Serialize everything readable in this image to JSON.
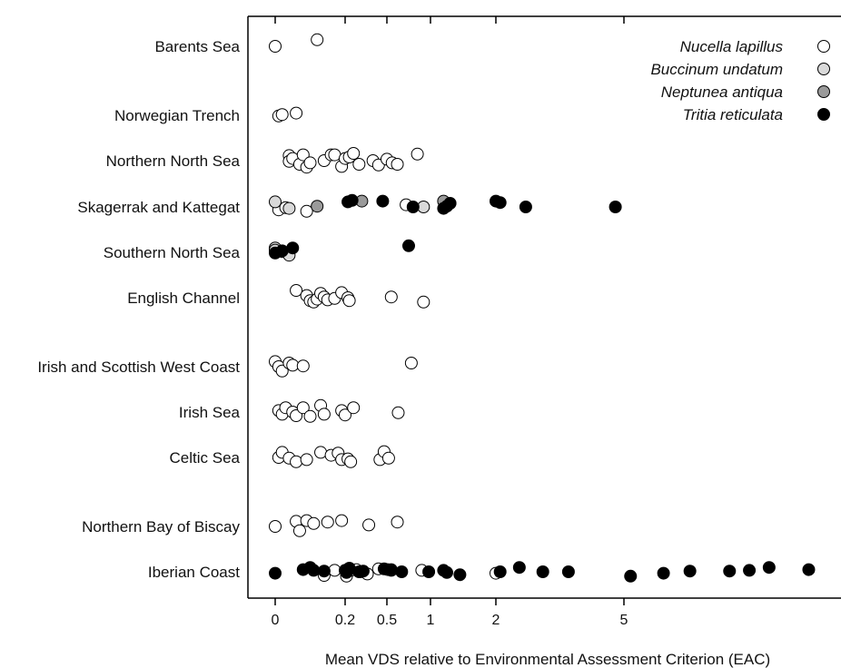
{
  "chart_data": {
    "type": "scatter",
    "xlabel": "Mean VDS relative to Environmental Assessment Criterion (EAC)",
    "x_tick_labels": [
      "0",
      "0.2",
      "0.5",
      "1",
      "2",
      "5"
    ],
    "x_ticks": [
      0,
      0.2,
      0.5,
      1,
      2,
      5
    ],
    "xlim": [
      -0.1,
      20
    ],
    "xscale": "compressed (non-linear)",
    "grid": false,
    "legend_position": "top-right",
    "categories": [
      "Barents Sea",
      "Norwegian Trench",
      "Northern North Sea",
      "Skagerrak and Kattegat",
      "Southern North Sea",
      "English Channel",
      "Irish and Scottish West Coast",
      "Irish Sea",
      "Celtic Sea",
      "Northern Bay of Biscay",
      "Iberian Coast"
    ],
    "series": [
      {
        "name": "Nucella lapillus",
        "fill": "#ffffff",
        "points": [
          {
            "region": "Barents Sea",
            "x": 0.0,
            "j": 0.0
          },
          {
            "region": "Barents Sea",
            "x": 0.12,
            "j": -0.9
          },
          {
            "region": "Norwegian Trench",
            "x": 0.01,
            "j": 0.1
          },
          {
            "region": "Norwegian Trench",
            "x": 0.02,
            "j": -0.1
          },
          {
            "region": "Norwegian Trench",
            "x": 0.06,
            "j": -0.3
          },
          {
            "region": "Northern North Sea",
            "x": 0.04,
            "j": -0.7
          },
          {
            "region": "Northern North Sea",
            "x": 0.04,
            "j": 0.1
          },
          {
            "region": "Northern North Sea",
            "x": 0.05,
            "j": -0.3
          },
          {
            "region": "Northern North Sea",
            "x": 0.07,
            "j": 0.5
          },
          {
            "region": "Northern North Sea",
            "x": 0.08,
            "j": -0.8
          },
          {
            "region": "Northern North Sea",
            "x": 0.09,
            "j": 0.9
          },
          {
            "region": "Northern North Sea",
            "x": 0.1,
            "j": 0.3
          },
          {
            "region": "Northern North Sea",
            "x": 0.14,
            "j": 0.0
          },
          {
            "region": "Northern North Sea",
            "x": 0.16,
            "j": -0.8
          },
          {
            "region": "Northern North Sea",
            "x": 0.17,
            "j": -0.8
          },
          {
            "region": "Northern North Sea",
            "x": 0.19,
            "j": 0.8
          },
          {
            "region": "Northern North Sea",
            "x": 0.2,
            "j": -0.3
          },
          {
            "region": "Northern North Sea",
            "x": 0.23,
            "j": -0.5
          },
          {
            "region": "Northern North Sea",
            "x": 0.26,
            "j": -1.0
          },
          {
            "region": "Northern North Sea",
            "x": 0.3,
            "j": 0.5
          },
          {
            "region": "Northern North Sea",
            "x": 0.4,
            "j": 0.0
          },
          {
            "region": "Northern North Sea",
            "x": 0.44,
            "j": 0.6
          },
          {
            "region": "Northern North Sea",
            "x": 0.5,
            "j": -0.2
          },
          {
            "region": "Northern North Sea",
            "x": 0.56,
            "j": 0.3
          },
          {
            "region": "Northern North Sea",
            "x": 0.62,
            "j": 0.5
          },
          {
            "region": "Northern North Sea",
            "x": 0.85,
            "j": -0.9
          },
          {
            "region": "Skagerrak and Kattegat",
            "x": 0.01,
            "j": 0.4
          },
          {
            "region": "Skagerrak and Kattegat",
            "x": 0.03,
            "j": 0.1
          },
          {
            "region": "Skagerrak and Kattegat",
            "x": 0.09,
            "j": 0.6
          },
          {
            "region": "Skagerrak and Kattegat",
            "x": 0.72,
            "j": -0.3
          },
          {
            "region": "English Channel",
            "x": 0.06,
            "j": -1.0
          },
          {
            "region": "English Channel",
            "x": 0.09,
            "j": -0.3
          },
          {
            "region": "English Channel",
            "x": 0.1,
            "j": 0.4
          },
          {
            "region": "English Channel",
            "x": 0.11,
            "j": 0.6
          },
          {
            "region": "English Channel",
            "x": 0.12,
            "j": 0.2
          },
          {
            "region": "English Channel",
            "x": 0.13,
            "j": -0.6
          },
          {
            "region": "English Channel",
            "x": 0.14,
            "j": -0.1
          },
          {
            "region": "English Channel",
            "x": 0.15,
            "j": 0.3
          },
          {
            "region": "English Channel",
            "x": 0.17,
            "j": 0.1
          },
          {
            "region": "English Channel",
            "x": 0.19,
            "j": -0.7
          },
          {
            "region": "English Channel",
            "x": 0.22,
            "j": 0.0
          },
          {
            "region": "English Channel",
            "x": 0.23,
            "j": 0.4
          },
          {
            "region": "English Channel",
            "x": 0.55,
            "j": -0.1
          },
          {
            "region": "English Channel",
            "x": 0.92,
            "j": 0.6
          },
          {
            "region": "Irish and Scottish West Coast",
            "x": 0.0,
            "j": -0.7
          },
          {
            "region": "Irish and Scottish West Coast",
            "x": 0.01,
            "j": 0.0
          },
          {
            "region": "Irish and Scottish West Coast",
            "x": 0.02,
            "j": 0.6
          },
          {
            "region": "Irish and Scottish West Coast",
            "x": 0.04,
            "j": -0.5
          },
          {
            "region": "Irish and Scottish West Coast",
            "x": 0.05,
            "j": -0.2
          },
          {
            "region": "Irish and Scottish West Coast",
            "x": 0.08,
            "j": -0.1
          },
          {
            "region": "Irish and Scottish West Coast",
            "x": 0.78,
            "j": -0.5
          },
          {
            "region": "Irish Sea",
            "x": 0.01,
            "j": -0.2
          },
          {
            "region": "Irish Sea",
            "x": 0.02,
            "j": 0.3
          },
          {
            "region": "Irish Sea",
            "x": 0.03,
            "j": -0.6
          },
          {
            "region": "Irish Sea",
            "x": 0.05,
            "j": 0.0
          },
          {
            "region": "Irish Sea",
            "x": 0.06,
            "j": 0.5
          },
          {
            "region": "Irish Sea",
            "x": 0.08,
            "j": -0.6
          },
          {
            "region": "Irish Sea",
            "x": 0.1,
            "j": 0.6
          },
          {
            "region": "Irish Sea",
            "x": 0.13,
            "j": -0.9
          },
          {
            "region": "Irish Sea",
            "x": 0.14,
            "j": 0.3
          },
          {
            "region": "Irish Sea",
            "x": 0.19,
            "j": -0.2
          },
          {
            "region": "Irish Sea",
            "x": 0.2,
            "j": 0.4
          },
          {
            "region": "Irish Sea",
            "x": 0.26,
            "j": -0.6
          },
          {
            "region": "Irish Sea",
            "x": 0.63,
            "j": 0.1
          },
          {
            "region": "Celtic Sea",
            "x": 0.01,
            "j": 0.0
          },
          {
            "region": "Celtic Sea",
            "x": 0.02,
            "j": -0.7
          },
          {
            "region": "Celtic Sea",
            "x": 0.04,
            "j": 0.1
          },
          {
            "region": "Celtic Sea",
            "x": 0.06,
            "j": 0.6
          },
          {
            "region": "Celtic Sea",
            "x": 0.09,
            "j": 0.3
          },
          {
            "region": "Celtic Sea",
            "x": 0.13,
            "j": -0.7
          },
          {
            "region": "Celtic Sea",
            "x": 0.16,
            "j": -0.3
          },
          {
            "region": "Celtic Sea",
            "x": 0.18,
            "j": -0.6
          },
          {
            "region": "Celtic Sea",
            "x": 0.19,
            "j": 0.3
          },
          {
            "region": "Celtic Sea",
            "x": 0.22,
            "j": 0.2
          },
          {
            "region": "Celtic Sea",
            "x": 0.24,
            "j": 0.6
          },
          {
            "region": "Celtic Sea",
            "x": 0.45,
            "j": 0.3
          },
          {
            "region": "Celtic Sea",
            "x": 0.48,
            "j": -0.8
          },
          {
            "region": "Celtic Sea",
            "x": 0.52,
            "j": 0.1
          },
          {
            "region": "Northern Bay of Biscay",
            "x": 0.0,
            "j": 0.0
          },
          {
            "region": "Northern Bay of Biscay",
            "x": 0.06,
            "j": -0.7
          },
          {
            "region": "Northern Bay of Biscay",
            "x": 0.07,
            "j": 0.6
          },
          {
            "region": "Northern Bay of Biscay",
            "x": 0.09,
            "j": -0.8
          },
          {
            "region": "Northern Bay of Biscay",
            "x": 0.11,
            "j": -0.4
          },
          {
            "region": "Northern Bay of Biscay",
            "x": 0.15,
            "j": -0.6
          },
          {
            "region": "Northern Bay of Biscay",
            "x": 0.19,
            "j": -0.8
          },
          {
            "region": "Northern Bay of Biscay",
            "x": 0.37,
            "j": -0.2
          },
          {
            "region": "Northern Bay of Biscay",
            "x": 0.62,
            "j": -0.6
          },
          {
            "region": "Iberian Coast",
            "x": 0.14,
            "j": 0.5
          },
          {
            "region": "Iberian Coast",
            "x": 0.17,
            "j": -0.2
          },
          {
            "region": "Iberian Coast",
            "x": 0.21,
            "j": 0.6
          },
          {
            "region": "Iberian Coast",
            "x": 0.24,
            "j": -0.2
          },
          {
            "region": "Iberian Coast",
            "x": 0.28,
            "j": -0.3
          },
          {
            "region": "Iberian Coast",
            "x": 0.31,
            "j": 0.0
          },
          {
            "region": "Iberian Coast",
            "x": 0.36,
            "j": 0.3
          },
          {
            "region": "Iberian Coast",
            "x": 0.44,
            "j": -0.4
          },
          {
            "region": "Iberian Coast",
            "x": 0.51,
            "j": -0.3
          },
          {
            "region": "Iberian Coast",
            "x": 0.55,
            "j": -0.3
          },
          {
            "region": "Iberian Coast",
            "x": 0.9,
            "j": -0.2
          },
          {
            "region": "Iberian Coast",
            "x": 2.0,
            "j": 0.2
          }
        ]
      },
      {
        "name": "Buccinum undatum",
        "fill": "#d9d9d9",
        "points": [
          {
            "region": "Skagerrak and Kattegat",
            "x": 0.0,
            "j": -0.7
          },
          {
            "region": "Skagerrak and Kattegat",
            "x": 0.04,
            "j": 0.2
          },
          {
            "region": "Skagerrak and Kattegat",
            "x": 0.92,
            "j": 0.0
          },
          {
            "region": "Southern North Sea",
            "x": 0.0,
            "j": -0.6
          },
          {
            "region": "Southern North Sea",
            "x": 0.0,
            "j": -0.3
          },
          {
            "region": "Southern North Sea",
            "x": 0.02,
            "j": -0.1
          },
          {
            "region": "Southern North Sea",
            "x": 0.04,
            "j": 0.4
          }
        ]
      },
      {
        "name": "Neptunea antiqua",
        "fill": "#9a9a9a",
        "points": [
          {
            "region": "Skagerrak and Kattegat",
            "x": 0.12,
            "j": -0.1
          },
          {
            "region": "Skagerrak and Kattegat",
            "x": 0.32,
            "j": -0.8
          },
          {
            "region": "Skagerrak and Kattegat",
            "x": 1.2,
            "j": -0.8
          }
        ]
      },
      {
        "name": "Tritia reticulata",
        "fill": "#000000",
        "points": [
          {
            "region": "Skagerrak and Kattegat",
            "x": 0.22,
            "j": -0.7
          },
          {
            "region": "Skagerrak and Kattegat",
            "x": 0.25,
            "j": -0.9
          },
          {
            "region": "Skagerrak and Kattegat",
            "x": 0.47,
            "j": -0.8
          },
          {
            "region": "Skagerrak and Kattegat",
            "x": 0.8,
            "j": 0.0
          },
          {
            "region": "Skagerrak and Kattegat",
            "x": 1.2,
            "j": 0.2
          },
          {
            "region": "Skagerrak and Kattegat",
            "x": 1.25,
            "j": -0.1
          },
          {
            "region": "Skagerrak and Kattegat",
            "x": 1.3,
            "j": -0.5
          },
          {
            "region": "Skagerrak and Kattegat",
            "x": 2.0,
            "j": -0.8
          },
          {
            "region": "Skagerrak and Kattegat",
            "x": 2.1,
            "j": -0.6
          },
          {
            "region": "Skagerrak and Kattegat",
            "x": 2.7,
            "j": 0.0
          },
          {
            "region": "Skagerrak and Kattegat",
            "x": 4.8,
            "j": 0.0
          },
          {
            "region": "Southern North Sea",
            "x": 0.0,
            "j": 0.1
          },
          {
            "region": "Southern North Sea",
            "x": 0.02,
            "j": -0.2
          },
          {
            "region": "Southern North Sea",
            "x": 0.05,
            "j": -0.6
          },
          {
            "region": "Southern North Sea",
            "x": 0.75,
            "j": -0.9
          },
          {
            "region": "Iberian Coast",
            "x": 0.0,
            "j": 0.2
          },
          {
            "region": "Iberian Coast",
            "x": 0.08,
            "j": -0.3
          },
          {
            "region": "Iberian Coast",
            "x": 0.1,
            "j": -0.6
          },
          {
            "region": "Iberian Coast",
            "x": 0.11,
            "j": -0.2
          },
          {
            "region": "Iberian Coast",
            "x": 0.14,
            "j": -0.1
          },
          {
            "region": "Iberian Coast",
            "x": 0.2,
            "j": -0.2
          },
          {
            "region": "Iberian Coast",
            "x": 0.21,
            "j": 0.1
          },
          {
            "region": "Iberian Coast",
            "x": 0.23,
            "j": -0.5
          },
          {
            "region": "Iberian Coast",
            "x": 0.3,
            "j": 0.0
          },
          {
            "region": "Iberian Coast",
            "x": 0.33,
            "j": -0.1
          },
          {
            "region": "Iberian Coast",
            "x": 0.48,
            "j": -0.4
          },
          {
            "region": "Iberian Coast",
            "x": 0.55,
            "j": -0.2
          },
          {
            "region": "Iberian Coast",
            "x": 0.67,
            "j": 0.0
          },
          {
            "region": "Iberian Coast",
            "x": 0.98,
            "j": 0.0
          },
          {
            "region": "Iberian Coast",
            "x": 1.2,
            "j": -0.2
          },
          {
            "region": "Iberian Coast",
            "x": 1.25,
            "j": 0.1
          },
          {
            "region": "Iberian Coast",
            "x": 1.45,
            "j": 0.4
          },
          {
            "region": "Iberian Coast",
            "x": 2.1,
            "j": 0.0
          },
          {
            "region": "Iberian Coast",
            "x": 2.55,
            "j": -0.6
          },
          {
            "region": "Iberian Coast",
            "x": 3.1,
            "j": 0.0
          },
          {
            "region": "Iberian Coast",
            "x": 3.7,
            "j": 0.0
          },
          {
            "region": "Iberian Coast",
            "x": 5.5,
            "j": 0.6
          },
          {
            "region": "Iberian Coast",
            "x": 8.0,
            "j": 0.2
          },
          {
            "region": "Iberian Coast",
            "x": 10.0,
            "j": -0.1
          },
          {
            "region": "Iberian Coast",
            "x": 13.0,
            "j": -0.1
          },
          {
            "region": "Iberian Coast",
            "x": 14.5,
            "j": -0.2
          },
          {
            "region": "Iberian Coast",
            "x": 16.0,
            "j": -0.6
          },
          {
            "region": "Iberian Coast",
            "x": 19.0,
            "j": -0.3
          }
        ]
      }
    ]
  }
}
